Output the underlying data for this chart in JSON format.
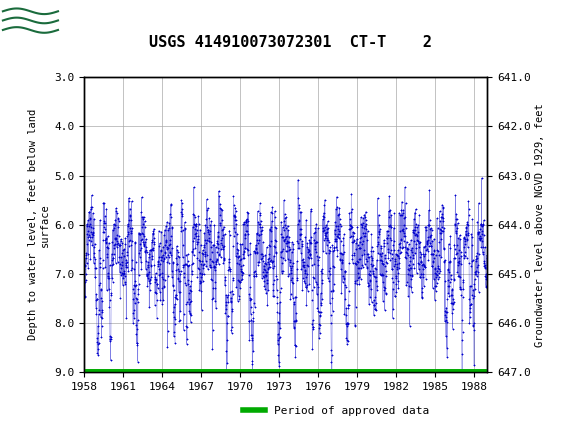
{
  "title": "USGS 414910073072301  CT-T    2",
  "ylabel_left": "Depth to water level, feet below land\nsurface",
  "ylabel_right": "Groundwater level above NGVD 1929, feet",
  "ylim_left": [
    3.0,
    9.0
  ],
  "ylim_right": [
    641.0,
    647.0
  ],
  "xlim": [
    1958,
    1989
  ],
  "xticks": [
    1958,
    1961,
    1964,
    1967,
    1970,
    1973,
    1976,
    1979,
    1982,
    1985,
    1988
  ],
  "yticks_left": [
    3.0,
    4.0,
    5.0,
    6.0,
    7.0,
    8.0,
    9.0
  ],
  "yticks_right": [
    641.0,
    642.0,
    643.0,
    644.0,
    645.0,
    646.0,
    647.0
  ],
  "data_color": "#0000cc",
  "legend_label": "Period of approved data",
  "legend_color": "#00aa00",
  "header_color": "#1a6b3c",
  "header_text_color": "#ffffff",
  "background_color": "#ffffff",
  "grid_color": "#aaaaaa",
  "seed": 42,
  "n_points": 2000,
  "x_start": 1958.0,
  "x_end": 1989.0,
  "mean_depth": 6.5,
  "std_depth": 0.35,
  "seasonal_amplitude": 0.45,
  "spike_probability": 0.018,
  "spike_magnitude": 1.8
}
